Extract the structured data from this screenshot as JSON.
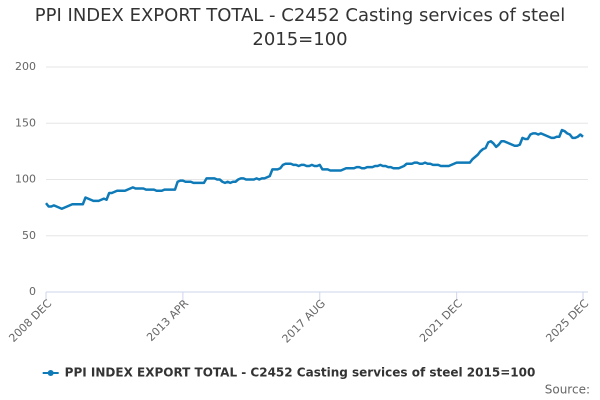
{
  "chart_data": {
    "type": "line",
    "title": "PPI INDEX EXPORT TOTAL - C2452 Casting services of steel 2015=100",
    "source": "Source:",
    "categories": [
      "2008 DEC",
      null,
      null,
      null,
      null,
      null,
      null,
      null,
      null,
      null,
      null,
      null,
      null,
      null,
      null,
      null,
      null,
      null,
      null,
      null,
      null,
      null,
      null,
      null,
      null,
      null,
      null,
      null,
      null,
      null,
      null,
      null,
      null,
      null,
      null,
      null,
      null,
      null,
      null,
      null,
      null,
      null,
      null,
      null,
      null,
      null,
      null,
      null,
      null,
      null,
      null,
      null,
      "2013 APR",
      null,
      null,
      null,
      null,
      null,
      null,
      null,
      null,
      null,
      null,
      null,
      null,
      null,
      null,
      null,
      null,
      null,
      null,
      null,
      null,
      null,
      null,
      null,
      null,
      null,
      null,
      null,
      null,
      null,
      null,
      null,
      null,
      null,
      null,
      null,
      null,
      null,
      null,
      null,
      null,
      null,
      null,
      null,
      null,
      null,
      null,
      null,
      null,
      null,
      null,
      null,
      "2017 AUG",
      null,
      null,
      null,
      null,
      null,
      null,
      null,
      null,
      null,
      null,
      null,
      null,
      null,
      null,
      null,
      null,
      null,
      null,
      null,
      null,
      null,
      null,
      null,
      null,
      null,
      null,
      null,
      null,
      null,
      null,
      null,
      null,
      null,
      null,
      null,
      null,
      null,
      null,
      null,
      null,
      null,
      null,
      null,
      null,
      null,
      null,
      null,
      null,
      null,
      null,
      null,
      "2021 DEC",
      null,
      null,
      null,
      null,
      null,
      null,
      null,
      null,
      null,
      null,
      null,
      null,
      null,
      null,
      null,
      null,
      null,
      null,
      null,
      null,
      null,
      null,
      null,
      null,
      null,
      null,
      null,
      null,
      null,
      null,
      null,
      null,
      null,
      null,
      null,
      null,
      null,
      null,
      null,
      null,
      null,
      null,
      null,
      null,
      null,
      null,
      null,
      "2025 DEC"
    ],
    "series": [
      {
        "name": "PPI INDEX EXPORT TOTAL - C2452 Casting services of steel 2015=100",
        "color": "#0f7ab8",
        "values": [
          79,
          76,
          76,
          77,
          76,
          75,
          74,
          75,
          76,
          77,
          78,
          78,
          78,
          78,
          78,
          84,
          83,
          82,
          81,
          81,
          81,
          82,
          83,
          82,
          88,
          88,
          89,
          90,
          90,
          90,
          90,
          91,
          92,
          93,
          92,
          92,
          92,
          92,
          91,
          91,
          91,
          91,
          90,
          90,
          90,
          91,
          91,
          91,
          91,
          91,
          98,
          99,
          99,
          98,
          98,
          98,
          97,
          97,
          97,
          97,
          97,
          101,
          101,
          101,
          101,
          100,
          100,
          98,
          97,
          98,
          97,
          98,
          98,
          100,
          101,
          101,
          100,
          100,
          100,
          100,
          101,
          100,
          101,
          101,
          102,
          103,
          109,
          109,
          109,
          110,
          113,
          114,
          114,
          114,
          113,
          113,
          112,
          113,
          113,
          112,
          112,
          113,
          112,
          112,
          113,
          109,
          109,
          109,
          108,
          108,
          108,
          108,
          108,
          109,
          110,
          110,
          110,
          110,
          111,
          111,
          110,
          110,
          111,
          111,
          111,
          112,
          112,
          113,
          112,
          112,
          111,
          111,
          110,
          110,
          110,
          111,
          112,
          114,
          114,
          114,
          115,
          115,
          114,
          114,
          115,
          114,
          114,
          113,
          113,
          113,
          112,
          112,
          112,
          112,
          113,
          114,
          115,
          115,
          115,
          115,
          115,
          115,
          118,
          120,
          122,
          125,
          127,
          128,
          133,
          134,
          132,
          129,
          131,
          134,
          134,
          133,
          132,
          131,
          130,
          130,
          131,
          137,
          136,
          136,
          140,
          141,
          141,
          140,
          141,
          140,
          139,
          138,
          137,
          137,
          138,
          138,
          144,
          143,
          141,
          140,
          137,
          137,
          138,
          140,
          138
        ]
      }
    ],
    "ylim": [
      0,
      200
    ],
    "yticks": [
      0,
      50,
      100,
      150,
      200
    ],
    "grid": true
  }
}
